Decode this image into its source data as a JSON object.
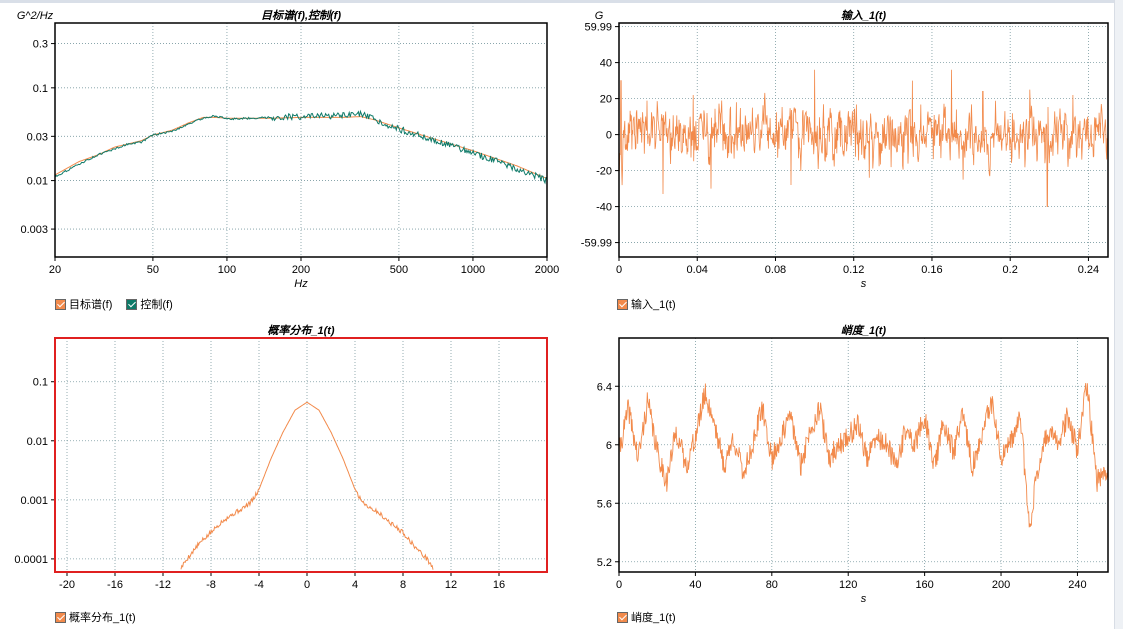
{
  "colors": {
    "orange": "#f28a4b",
    "green": "#0e7a68",
    "grid": "#7a9aa0",
    "highlight_border": "#e02020"
  },
  "panels": {
    "psd": {
      "title": "目标谱(f),控制(f)",
      "ylabel": "G^2/Hz",
      "xlabel": "Hz",
      "legend": [
        {
          "label": "目标谱(f)",
          "color": "#f28a4b"
        },
        {
          "label": "控制(f)",
          "color": "#0e7a68"
        }
      ]
    },
    "input": {
      "title": "输入_1(t)",
      "ylabel": "G",
      "xlabel": "s",
      "legend": [
        {
          "label": "输入_1(t)",
          "color": "#f28a4b"
        }
      ]
    },
    "prob": {
      "title": "概率分布_1(t)",
      "legend": [
        {
          "label": "概率分布_1(t)",
          "color": "#f28a4b"
        }
      ]
    },
    "kurt": {
      "title": "峭度_1(t)",
      "xlabel": "s",
      "legend": [
        {
          "label": "峭度_1(t)",
          "color": "#f28a4b"
        }
      ]
    }
  },
  "chart_data": [
    {
      "id": "psd",
      "type": "line",
      "title": "目标谱(f),控制(f)",
      "xlabel": "Hz",
      "ylabel": "G^2/Hz",
      "xscale": "log",
      "yscale": "log",
      "xlim": [
        20,
        2000
      ],
      "ylim": [
        0.0015,
        0.5
      ],
      "xticks": [
        20,
        50,
        100,
        200,
        500,
        1000,
        2000
      ],
      "xtick_labels": [
        "20",
        "50",
        "100",
        "200",
        "500",
        "1000",
        "2000"
      ],
      "yticks": [
        0.003,
        0.01,
        0.03,
        0.1,
        0.3
      ],
      "ytick_labels": [
        "0.003",
        "0.01",
        "0.03",
        "0.1",
        "0.3"
      ],
      "grid": true,
      "legend_position": "bottom-left",
      "series": [
        {
          "name": "目标谱(f)",
          "color": "#f28a4b",
          "x": [
            20,
            25,
            30,
            35,
            40,
            45,
            50,
            60,
            70,
            80,
            90,
            100,
            150,
            200,
            300,
            350,
            400,
            500,
            700,
            1000,
            1500,
            2000
          ],
          "y": [
            0.0115,
            0.016,
            0.019,
            0.023,
            0.025,
            0.027,
            0.031,
            0.035,
            0.042,
            0.048,
            0.048,
            0.047,
            0.047,
            0.048,
            0.048,
            0.049,
            0.045,
            0.037,
            0.028,
            0.021,
            0.0145,
            0.0105
          ]
        },
        {
          "name": "控制(f)",
          "color": "#0e7a68",
          "x": [
            20,
            25,
            30,
            35,
            40,
            45,
            50,
            60,
            70,
            80,
            90,
            100,
            150,
            200,
            300,
            350,
            400,
            500,
            700,
            1000,
            1500,
            2000
          ],
          "y": [
            0.011,
            0.015,
            0.019,
            0.022,
            0.025,
            0.026,
            0.031,
            0.034,
            0.041,
            0.047,
            0.05,
            0.046,
            0.048,
            0.049,
            0.05,
            0.052,
            0.045,
            0.036,
            0.027,
            0.02,
            0.0135,
            0.01
          ]
        }
      ]
    },
    {
      "id": "input",
      "type": "line",
      "title": "输入_1(t)",
      "xlabel": "s",
      "ylabel": "G",
      "xlim": [
        0,
        0.25
      ],
      "ylim": [
        -68,
        62
      ],
      "xticks": [
        0,
        0.04,
        0.08,
        0.12,
        0.16,
        0.2,
        0.24
      ],
      "xtick_labels": [
        "0",
        "0.04",
        "0.08",
        "0.12",
        "0.16",
        "0.2",
        "0.24"
      ],
      "yticks": [
        59.99,
        40,
        20,
        0,
        -20,
        -40,
        -59.99
      ],
      "ytick_labels": [
        "59.99",
        "40",
        "20",
        "0",
        "-20",
        "-40",
        "-59.99"
      ],
      "grid": true,
      "legend_position": "bottom-left",
      "series": [
        {
          "name": "输入_1(t)",
          "color": "#f28a4b",
          "rms": 8.5,
          "peaks": [
            [
              0.001,
              30
            ],
            [
              0.0225,
              -33
            ],
            [
              0.038,
              22
            ],
            [
              0.047,
              -30
            ],
            [
              0.06,
              18
            ],
            [
              0.088,
              -28
            ],
            [
              0.1,
              36
            ],
            [
              0.128,
              -24
            ],
            [
              0.15,
              30
            ],
            [
              0.17,
              36
            ],
            [
              0.176,
              -25
            ],
            [
              0.186,
              24
            ],
            [
              0.21,
              25
            ],
            [
              0.219,
              -40
            ],
            [
              0.232,
              22
            ]
          ]
        }
      ]
    },
    {
      "id": "prob",
      "type": "line",
      "title": "概率分布_1(t)",
      "yscale": "log",
      "xlim": [
        -21,
        20
      ],
      "ylim": [
        6e-05,
        0.55
      ],
      "xticks": [
        -20,
        -16,
        -12,
        -8,
        -4,
        0,
        4,
        8,
        12,
        16
      ],
      "xtick_labels": [
        "-20",
        "-16",
        "-12",
        "-8",
        "-4",
        "0",
        "4",
        "8",
        "12",
        "16"
      ],
      "yticks": [
        0.1,
        0.01,
        0.001,
        0.0001
      ],
      "ytick_labels": [
        "0.1",
        "0.01",
        "0.001",
        "0.0001"
      ],
      "grid": true,
      "legend_position": "bottom-left",
      "series": [
        {
          "name": "概率分布_1(t)",
          "color": "#f28a4b",
          "x": [
            -10.5,
            -10,
            -9,
            -8,
            -7,
            -6,
            -5,
            -4.5,
            -4,
            -3,
            -2,
            -1,
            0,
            1,
            2,
            3,
            4,
            4.5,
            5,
            6,
            7,
            8,
            9,
            10,
            10.5
          ],
          "y": [
            7e-05,
            0.0001,
            0.00018,
            0.00028,
            0.00045,
            0.0006,
            0.0008,
            0.001,
            0.0015,
            0.005,
            0.014,
            0.033,
            0.045,
            0.033,
            0.014,
            0.005,
            0.0015,
            0.001,
            0.0008,
            0.0006,
            0.0004,
            0.00028,
            0.00016,
            0.0001,
            7e-05
          ]
        }
      ]
    },
    {
      "id": "kurt",
      "type": "line",
      "title": "峭度_1(t)",
      "xlabel": "s",
      "xlim": [
        0,
        256
      ],
      "ylim": [
        5.13,
        6.73
      ],
      "xticks": [
        0,
        40,
        80,
        120,
        160,
        200,
        240
      ],
      "xtick_labels": [
        "0",
        "40",
        "80",
        "120",
        "160",
        "200",
        "240"
      ],
      "yticks": [
        6.4,
        6,
        5.6,
        5.2
      ],
      "ytick_labels": [
        "6.4",
        "6",
        "5.6",
        "5.2"
      ],
      "grid": true,
      "legend_position": "bottom-left",
      "series": [
        {
          "name": "峭度_1(t)",
          "color": "#f28a4b",
          "x": [
            0,
            5,
            10,
            15,
            20,
            25,
            30,
            35,
            40,
            45,
            50,
            55,
            60,
            65,
            70,
            75,
            80,
            85,
            90,
            95,
            100,
            105,
            110,
            115,
            120,
            125,
            130,
            135,
            140,
            145,
            150,
            155,
            160,
            165,
            170,
            175,
            180,
            185,
            190,
            195,
            200,
            205,
            210,
            215,
            220,
            225,
            230,
            235,
            240,
            245,
            250,
            256
          ],
          "y": [
            5.95,
            6.25,
            5.9,
            6.3,
            5.95,
            5.75,
            6.1,
            5.85,
            6.05,
            6.35,
            6.15,
            5.85,
            6.05,
            5.8,
            6.0,
            6.25,
            5.9,
            6.05,
            6.2,
            5.85,
            6.1,
            6.25,
            5.9,
            6.0,
            6.05,
            6.15,
            5.9,
            6.05,
            6.0,
            5.85,
            6.1,
            6.0,
            6.2,
            5.85,
            6.15,
            5.95,
            6.2,
            5.85,
            6.05,
            6.3,
            5.9,
            6.0,
            6.2,
            5.45,
            5.9,
            6.1,
            6.0,
            6.2,
            5.95,
            6.42,
            5.75,
            5.85
          ]
        }
      ]
    }
  ]
}
